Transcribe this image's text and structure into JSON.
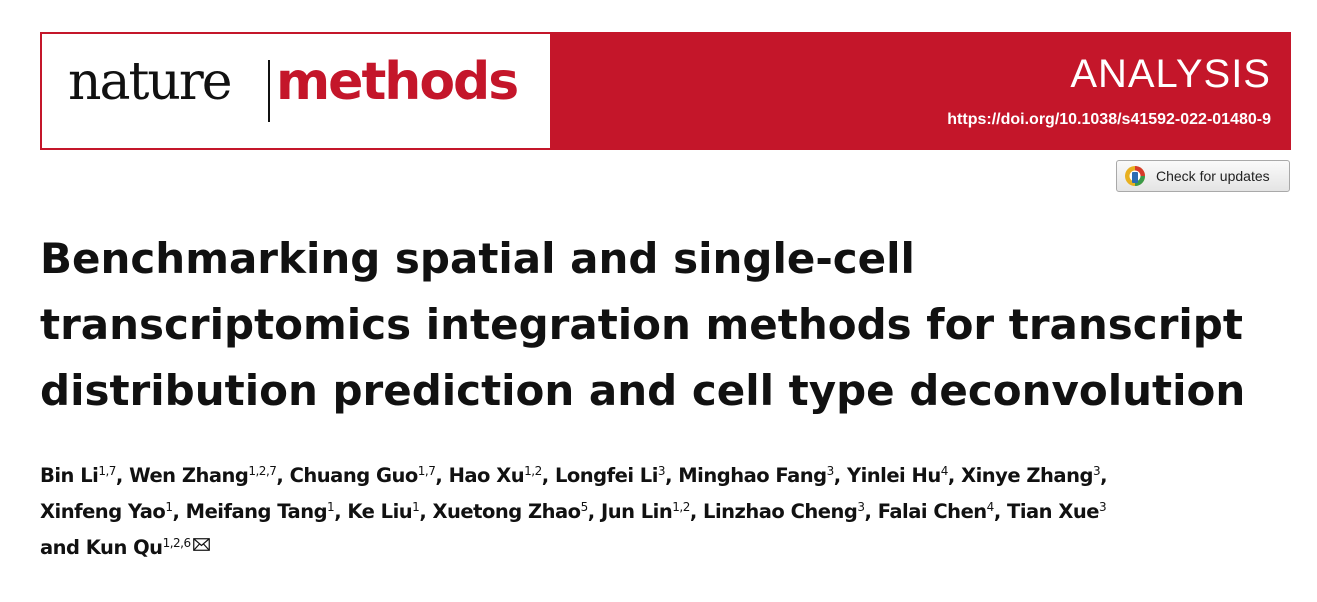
{
  "journal": {
    "name_part1": "nature",
    "name_part2": "methods",
    "article_type": "ANALYSIS",
    "doi": "https://doi.org/10.1038/s41592-022-01480-9"
  },
  "check_updates": {
    "label": "Check for updates",
    "icon": "crossmark-icon"
  },
  "title": {
    "lines": [
      "Benchmarking spatial and single-cell",
      "transcriptomics integration methods for transcript",
      "distribution prediction and cell type deconvolution"
    ]
  },
  "authors": {
    "lines": [
      [
        {
          "name": "Bin Li",
          "aff": "1,7",
          "sep": ", "
        },
        {
          "name": "Wen Zhang",
          "aff": "1,2,7",
          "sep": ", "
        },
        {
          "name": "Chuang Guo",
          "aff": "1,7",
          "sep": ", "
        },
        {
          "name": "Hao Xu",
          "aff": "1,2",
          "sep": ", "
        },
        {
          "name": "Longfei Li",
          "aff": "3",
          "sep": ", "
        },
        {
          "name": "Minghao Fang",
          "aff": "3",
          "sep": ", "
        },
        {
          "name": "Yinlei Hu",
          "aff": "4",
          "sep": ", "
        },
        {
          "name": "Xinye Zhang",
          "aff": "3",
          "sep": ","
        }
      ],
      [
        {
          "name": "Xinfeng Yao",
          "aff": "1",
          "sep": ", "
        },
        {
          "name": "Meifang Tang",
          "aff": "1",
          "sep": ", "
        },
        {
          "name": "Ke Liu",
          "aff": "1",
          "sep": ", "
        },
        {
          "name": "Xuetong Zhao",
          "aff": "5",
          "sep": ", "
        },
        {
          "name": "Jun Lin",
          "aff": "1,2",
          "sep": ", "
        },
        {
          "name": "Linzhao Cheng",
          "aff": "3",
          "sep": ", "
        },
        {
          "name": "Falai Chen",
          "aff": "4",
          "sep": ", "
        },
        {
          "name": "Tian Xue",
          "aff": "3",
          "sep": ""
        }
      ],
      [
        {
          "name": "and Kun Qu",
          "aff": "1,2,6",
          "sep": ""
        }
      ]
    ],
    "corresponding_icon": "envelope-icon"
  },
  "colors": {
    "brand_red": "#c4162a"
  }
}
